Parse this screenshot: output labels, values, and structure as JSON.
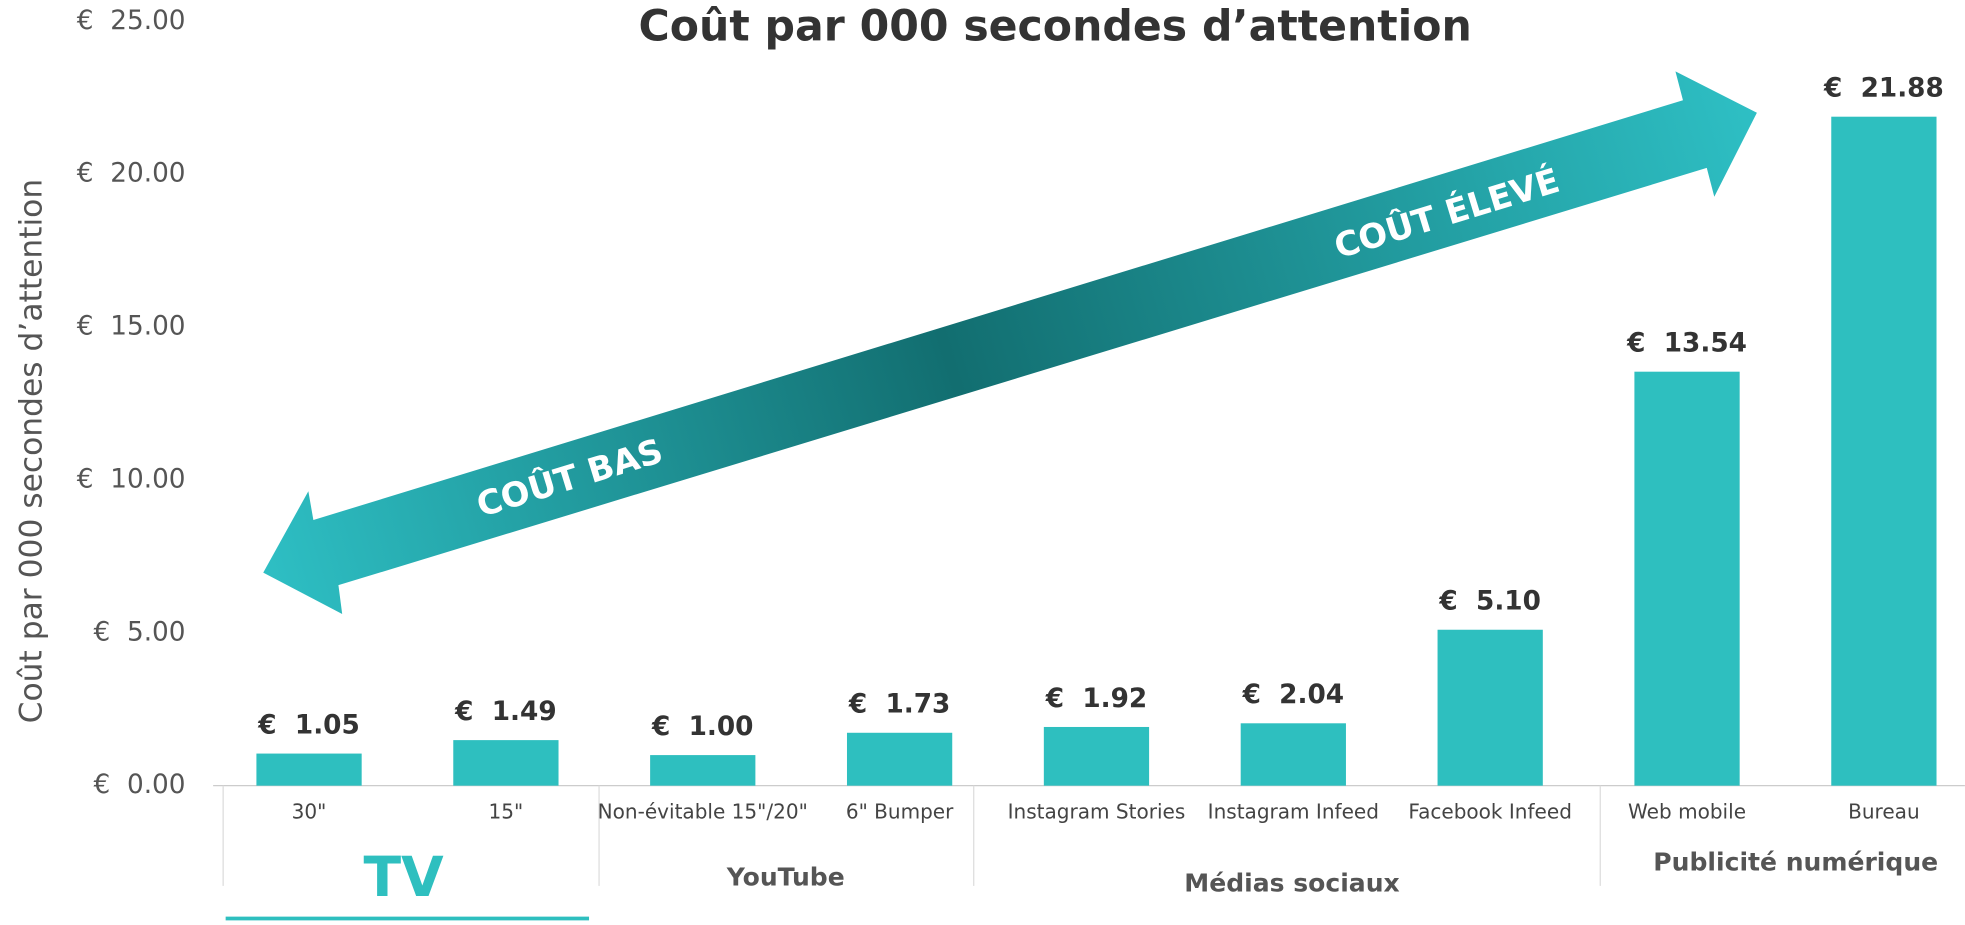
{
  "chart_data": {
    "type": "bar",
    "title": "Coût par 000 secondes d’attention",
    "y_label": "Coût par 000 secondes d’attention",
    "categories": [
      "30\"",
      "15\"",
      "Non-évitable 15\"/20\"",
      "6\" Bumper",
      "Instagram Stories",
      "Instagram Infeed",
      "Facebook Infeed",
      "Web mobile",
      "Bureau"
    ],
    "values": [
      1.05,
      1.49,
      1.0,
      1.73,
      1.92,
      2.04,
      5.1,
      13.54,
      21.88
    ],
    "value_labels": [
      "€  1.05",
      "€  1.49",
      "€  1.00",
      "€  1.73",
      "€  1.92",
      "€  2.04",
      "€  5.10",
      "€  13.54",
      "€  21.88"
    ],
    "color": "#2ebfbf",
    "ylim": [
      0,
      25
    ],
    "yticks": [
      {
        "value": 0,
        "label": "€  0.00"
      },
      {
        "value": 5,
        "label": "€  5.00"
      },
      {
        "value": 10,
        "label": "€  10.00"
      },
      {
        "value": 15,
        "label": "€  15.00"
      },
      {
        "value": 20,
        "label": "€  20.00"
      },
      {
        "value": 25,
        "label": "€  25.00"
      }
    ],
    "groups": [
      "TV",
      "YouTube",
      "Médias sociaux",
      "Publicité numérique"
    ],
    "annotations": [
      "COÛT BAS",
      "COÛT ÉLEVÉ"
    ]
  }
}
